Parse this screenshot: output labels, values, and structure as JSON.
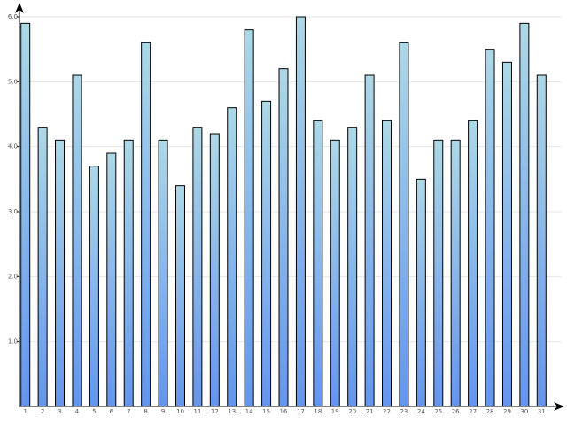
{
  "chart_data": {
    "type": "bar",
    "title": "",
    "xlabel": "",
    "ylabel": "",
    "categories": [
      "1",
      "2",
      "3",
      "4",
      "5",
      "6",
      "7",
      "8",
      "9",
      "10",
      "11",
      "12",
      "13",
      "14",
      "15",
      "16",
      "17",
      "18",
      "19",
      "20",
      "21",
      "22",
      "23",
      "24",
      "25",
      "26",
      "27",
      "28",
      "29",
      "30",
      "31"
    ],
    "values": [
      5.9,
      4.3,
      4.1,
      5.1,
      3.7,
      3.9,
      4.1,
      5.6,
      4.1,
      3.4,
      4.3,
      4.2,
      4.6,
      5.8,
      4.7,
      5.2,
      6.0,
      4.4,
      4.1,
      4.3,
      5.1,
      4.4,
      5.6,
      3.5,
      4.1,
      4.1,
      4.4,
      5.5,
      5.3,
      5.9,
      5.1
    ],
    "ylim": [
      0,
      6
    ],
    "yticks": [
      1,
      2,
      3,
      4,
      5,
      6
    ],
    "ytick_labels": [
      "1.0",
      "2.0",
      "3.0",
      "4.0",
      "5.0",
      "6.0"
    ],
    "grid": true,
    "legend": "none",
    "colors": {
      "bar_top": "#add8e6",
      "bar_bottom": "#6495ed",
      "bar_stroke": "#000000",
      "grid": "#e6e6e6",
      "axis": "#000000",
      "tick_text": "#555555"
    }
  }
}
